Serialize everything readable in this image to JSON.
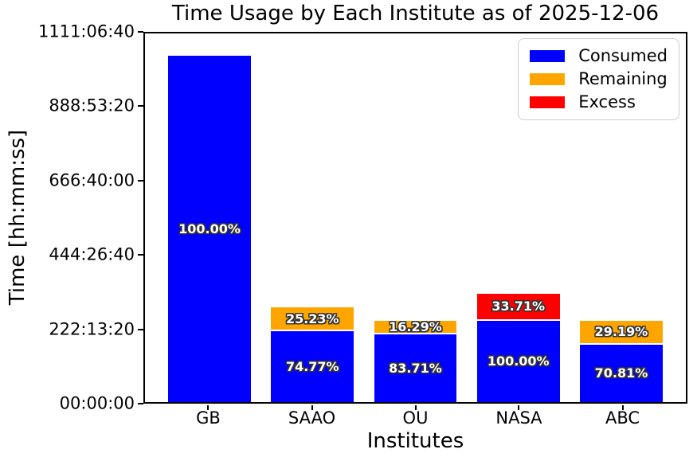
{
  "chart_data": {
    "type": "bar",
    "stacked": true,
    "title": "Time Usage by Each Institute as of 2025-12-06",
    "xlabel": "Institutes",
    "ylabel": "Time [hh:mm:ss]",
    "categories": [
      "GB",
      "SAAO",
      "OU",
      "NASA",
      "ABC"
    ],
    "ylim_seconds": [
      0,
      4000000
    ],
    "ytick_seconds": [
      0,
      800000,
      1600000,
      2400000,
      3200000,
      4000000
    ],
    "ytick_labels": [
      "00:00:00",
      "222:13:20",
      "444:26:40",
      "666:40:00",
      "888:53:20",
      "1111:06:40"
    ],
    "grid": false,
    "legend": {
      "position": "upper right",
      "entries": [
        {
          "label": "Consumed",
          "color": "#0000ff"
        },
        {
          "label": "Remaining",
          "color": "#ffa500"
        },
        {
          "label": "Excess",
          "color": "#ff0000"
        }
      ]
    },
    "series": [
      {
        "name": "Consumed",
        "color": "#0000ff",
        "values_seconds": [
          3760000,
          768600,
          736600,
          882000,
          624700
        ],
        "labels": [
          "100.00%",
          "74.77%",
          "83.71%",
          "100.00%",
          "70.81%"
        ]
      },
      {
        "name": "Remaining",
        "color": "#ffa500",
        "values_seconds": [
          0,
          259400,
          143400,
          0,
          257500
        ],
        "labels": [
          "",
          "25.23%",
          "16.29%",
          "",
          "29.19%"
        ]
      },
      {
        "name": "Excess",
        "color": "#ff0000",
        "values_seconds": [
          0,
          0,
          0,
          297300,
          0
        ],
        "labels": [
          "",
          "",
          "",
          "33.71%",
          ""
        ]
      }
    ]
  }
}
